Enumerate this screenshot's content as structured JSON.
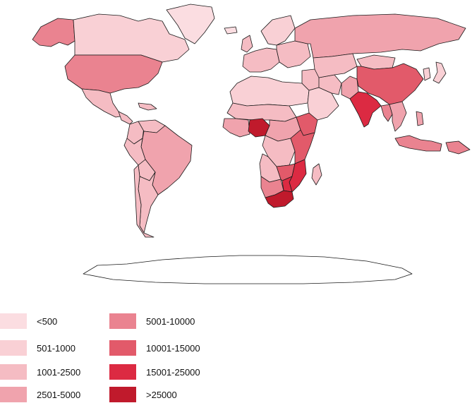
{
  "legend": {
    "classes": [
      {
        "label": "<500",
        "color": "#fbdde1"
      },
      {
        "label": "501-1000",
        "color": "#f9d0d5"
      },
      {
        "label": "1001-2500",
        "color": "#f5bcc3"
      },
      {
        "label": "2501-5000",
        "color": "#f0a3ad"
      },
      {
        "label": "5001-10000",
        "color": "#ea8390"
      },
      {
        "label": "10001-15000",
        "color": "#e25a6a"
      },
      {
        "label": "15001-25000",
        "color": "#dc2a42"
      },
      {
        "label": ">25000",
        "color": "#c01a2c"
      }
    ]
  },
  "regions": [
    {
      "id": "alaska",
      "class_index": 4
    },
    {
      "id": "canada",
      "class_index": 1
    },
    {
      "id": "greenland",
      "class_index": 0
    },
    {
      "id": "usa",
      "class_index": 4
    },
    {
      "id": "mexico",
      "class_index": 2
    },
    {
      "id": "central-america",
      "class_index": 2
    },
    {
      "id": "caribbean",
      "class_index": 2
    },
    {
      "id": "colombia",
      "class_index": 2
    },
    {
      "id": "venezuela",
      "class_index": 2
    },
    {
      "id": "brazil",
      "class_index": 3
    },
    {
      "id": "peru",
      "class_index": 2
    },
    {
      "id": "bolivia",
      "class_index": 2
    },
    {
      "id": "argentina",
      "class_index": 2
    },
    {
      "id": "chile",
      "class_index": 2
    },
    {
      "id": "iceland",
      "class_index": 0
    },
    {
      "id": "uk",
      "class_index": 2
    },
    {
      "id": "scandinavia",
      "class_index": 1
    },
    {
      "id": "western-europe",
      "class_index": 2
    },
    {
      "id": "eastern-europe",
      "class_index": 2
    },
    {
      "id": "russia",
      "class_index": 3
    },
    {
      "id": "north-africa",
      "class_index": 1
    },
    {
      "id": "sahel",
      "class_index": 2
    },
    {
      "id": "west-africa",
      "class_index": 3
    },
    {
      "id": "nigeria",
      "class_index": 7
    },
    {
      "id": "central-africa",
      "class_index": 3
    },
    {
      "id": "drc",
      "class_index": 2
    },
    {
      "id": "east-africa",
      "class_index": 5
    },
    {
      "id": "ethiopia",
      "class_index": 5
    },
    {
      "id": "angola",
      "class_index": 2
    },
    {
      "id": "zambia",
      "class_index": 5
    },
    {
      "id": "mozambique",
      "class_index": 6
    },
    {
      "id": "zimbabwe",
      "class_index": 6
    },
    {
      "id": "namibia-botswana",
      "class_index": 4
    },
    {
      "id": "south-africa",
      "class_index": 7
    },
    {
      "id": "madagascar",
      "class_index": 2
    },
    {
      "id": "middle-east",
      "class_index": 2
    },
    {
      "id": "arabia",
      "class_index": 1
    },
    {
      "id": "iran",
      "class_index": 2
    },
    {
      "id": "central-asia",
      "class_index": 2
    },
    {
      "id": "afghanistan-pakistan",
      "class_index": 3
    },
    {
      "id": "india",
      "class_index": 6
    },
    {
      "id": "china",
      "class_index": 5
    },
    {
      "id": "mongolia",
      "class_index": 2
    },
    {
      "id": "southeast-asia",
      "class_index": 3
    },
    {
      "id": "myanmar",
      "class_index": 4
    },
    {
      "id": "japan",
      "class_index": 1
    },
    {
      "id": "korea",
      "class_index": 1
    },
    {
      "id": "indonesia",
      "class_index": 4
    },
    {
      "id": "philippines",
      "class_index": 3
    },
    {
      "id": "papua-new-guinea",
      "class_index": 4
    },
    {
      "id": "antarctica",
      "class_index": -1
    }
  ]
}
